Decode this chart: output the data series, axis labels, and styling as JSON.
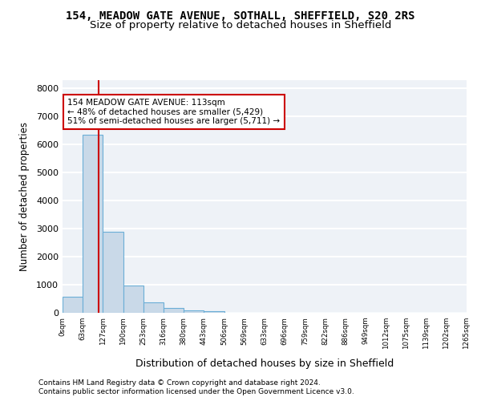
{
  "title_line1": "154, MEADOW GATE AVENUE, SOTHALL, SHEFFIELD, S20 2RS",
  "title_line2": "Size of property relative to detached houses in Sheffield",
  "xlabel": "Distribution of detached houses by size in Sheffield",
  "ylabel": "Number of detached properties",
  "bin_labels": [
    "0sqm",
    "63sqm",
    "127sqm",
    "190sqm",
    "253sqm",
    "316sqm",
    "380sqm",
    "443sqm",
    "506sqm",
    "569sqm",
    "633sqm",
    "696sqm",
    "759sqm",
    "822sqm",
    "886sqm",
    "949sqm",
    "1012sqm",
    "1075sqm",
    "1139sqm",
    "1202sqm",
    "1265sqm"
  ],
  "bar_values": [
    580,
    6340,
    2890,
    960,
    360,
    160,
    100,
    65,
    0,
    0,
    0,
    0,
    0,
    0,
    0,
    0,
    0,
    0,
    0,
    0
  ],
  "bar_color": "#c9d9e8",
  "bar_edge_color": "#6baed6",
  "vline_x": 1.8,
  "annotation_text": "154 MEADOW GATE AVENUE: 113sqm\n← 48% of detached houses are smaller (5,429)\n51% of semi-detached houses are larger (5,711) →",
  "annotation_box_facecolor": "#ffffff",
  "annotation_box_edgecolor": "#cc0000",
  "vline_color": "#cc0000",
  "ylim": [
    0,
    8300
  ],
  "yticks": [
    0,
    1000,
    2000,
    3000,
    4000,
    5000,
    6000,
    7000,
    8000
  ],
  "axes_bg_color": "#eef2f7",
  "grid_color": "#ffffff",
  "footer_line1": "Contains HM Land Registry data © Crown copyright and database right 2024.",
  "footer_line2": "Contains public sector information licensed under the Open Government Licence v3.0."
}
